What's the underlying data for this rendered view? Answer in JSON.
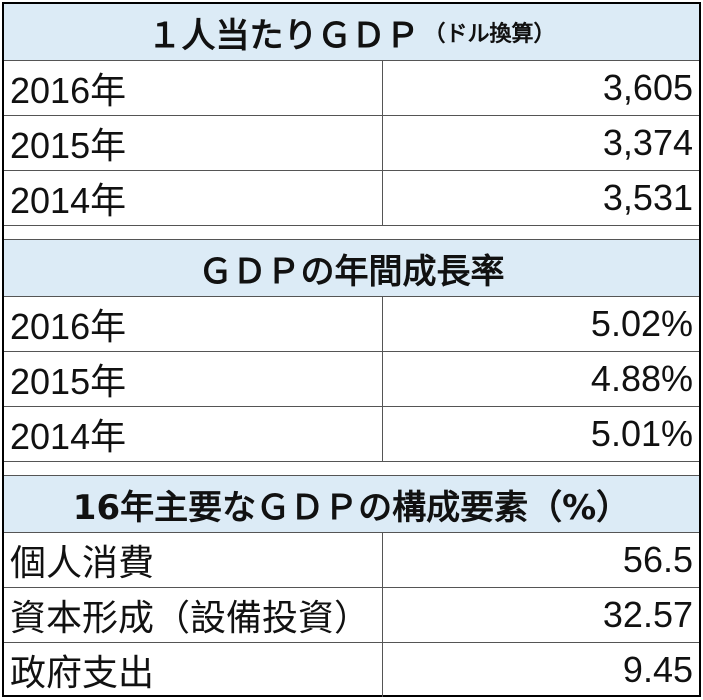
{
  "sections": [
    {
      "title": "１人当たりＧＤＰ",
      "note": "（ドル換算）",
      "rows": [
        [
          "2016年",
          "3,605"
        ],
        [
          "2015年",
          "3,374"
        ],
        [
          "2014年",
          "3,531"
        ]
      ]
    },
    {
      "title": "ＧＤＰの年間成長率",
      "rows": [
        [
          "2016年",
          "5.02%"
        ],
        [
          "2015年",
          "4.88%"
        ],
        [
          "2014年",
          "5.01%"
        ]
      ]
    },
    {
      "title": "16年主要なＧＤＰの構成要素（%）",
      "rows": [
        [
          "個人消費",
          "56.5"
        ],
        [
          "資本形成（設備投資）",
          "32.57"
        ],
        [
          "政府支出",
          "9.45"
        ]
      ]
    }
  ]
}
